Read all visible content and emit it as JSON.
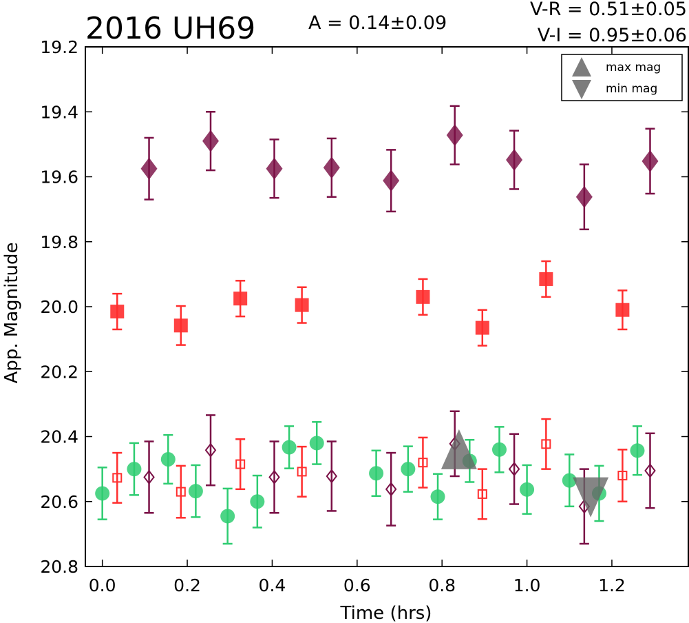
{
  "header": {
    "object_name": "2016 UH69",
    "amplitude": "A  = 0.14±0.09",
    "vr": "V-R = 0.51±0.05",
    "vi": "V-I  = 0.95±0.06"
  },
  "legend": {
    "max_label": "max mag",
    "min_label": "min mag",
    "placement": "top-right"
  },
  "colors": {
    "diamond": "#7a1046",
    "square": "#ff2e2e",
    "circle": "#2ecc71",
    "marker_gray": "#666666"
  },
  "chart_data": {
    "type": "scatter",
    "xlabel": "Time (hrs)",
    "ylabel": "App. Magnitude",
    "xlim": [
      -0.04,
      1.38
    ],
    "ylim": [
      20.8,
      19.2
    ],
    "y_inverted": true,
    "xticks": [
      "0.0",
      "0.2",
      "0.4",
      "0.6",
      "0.8",
      "1.0",
      "1.2"
    ],
    "xtick_values": [
      0.0,
      0.2,
      0.4,
      0.6,
      0.8,
      1.0,
      1.2
    ],
    "yticks": [
      "19.2",
      "19.4",
      "19.6",
      "19.8",
      "20.0",
      "20.2",
      "20.4",
      "20.6",
      "20.8"
    ],
    "ytick_values": [
      19.2,
      19.4,
      19.6,
      19.8,
      20.0,
      20.2,
      20.4,
      20.6,
      20.8
    ],
    "grid": false,
    "series": [
      {
        "marker": "diamond-filled",
        "points": [
          {
            "x": 0.11,
            "y": 19.575,
            "err": 0.095
          },
          {
            "x": 0.255,
            "y": 19.49,
            "err": 0.09
          },
          {
            "x": 0.405,
            "y": 19.575,
            "err": 0.09
          },
          {
            "x": 0.54,
            "y": 19.572,
            "err": 0.09
          },
          {
            "x": 0.68,
            "y": 19.612,
            "err": 0.095
          },
          {
            "x": 0.83,
            "y": 19.472,
            "err": 0.09
          },
          {
            "x": 0.97,
            "y": 19.548,
            "err": 0.09
          },
          {
            "x": 1.135,
            "y": 19.662,
            "err": 0.1
          },
          {
            "x": 1.29,
            "y": 19.552,
            "err": 0.1
          }
        ]
      },
      {
        "marker": "square-filled",
        "points": [
          {
            "x": 0.035,
            "y": 20.015,
            "err": 0.055
          },
          {
            "x": 0.185,
            "y": 20.058,
            "err": 0.06
          },
          {
            "x": 0.325,
            "y": 19.975,
            "err": 0.055
          },
          {
            "x": 0.47,
            "y": 19.995,
            "err": 0.055
          },
          {
            "x": 0.755,
            "y": 19.97,
            "err": 0.055
          },
          {
            "x": 0.895,
            "y": 20.065,
            "err": 0.055
          },
          {
            "x": 1.045,
            "y": 19.915,
            "err": 0.055
          },
          {
            "x": 1.225,
            "y": 20.01,
            "err": 0.06
          }
        ]
      },
      {
        "marker": "circle-filled",
        "points": [
          {
            "x": 0.0,
            "y": 20.575,
            "err": 0.08
          },
          {
            "x": 0.075,
            "y": 20.5,
            "err": 0.08
          },
          {
            "x": 0.155,
            "y": 20.47,
            "err": 0.075
          },
          {
            "x": 0.22,
            "y": 20.568,
            "err": 0.08
          },
          {
            "x": 0.295,
            "y": 20.645,
            "err": 0.085
          },
          {
            "x": 0.365,
            "y": 20.6,
            "err": 0.08
          },
          {
            "x": 0.44,
            "y": 20.433,
            "err": 0.065
          },
          {
            "x": 0.505,
            "y": 20.42,
            "err": 0.065
          },
          {
            "x": 0.645,
            "y": 20.513,
            "err": 0.07
          },
          {
            "x": 0.72,
            "y": 20.5,
            "err": 0.07
          },
          {
            "x": 0.79,
            "y": 20.585,
            "err": 0.07
          },
          {
            "x": 0.865,
            "y": 20.475,
            "err": 0.065
          },
          {
            "x": 0.935,
            "y": 20.44,
            "err": 0.07
          },
          {
            "x": 1.0,
            "y": 20.563,
            "err": 0.075
          },
          {
            "x": 1.1,
            "y": 20.535,
            "err": 0.08
          },
          {
            "x": 1.17,
            "y": 20.575,
            "err": 0.085
          },
          {
            "x": 1.26,
            "y": 20.443,
            "err": 0.075
          }
        ]
      },
      {
        "marker": "square-open",
        "points": [
          {
            "x": 0.035,
            "y": 20.527,
            "err": 0.077
          },
          {
            "x": 0.185,
            "y": 20.57,
            "err": 0.08
          },
          {
            "x": 0.325,
            "y": 20.485,
            "err": 0.077
          },
          {
            "x": 0.47,
            "y": 20.508,
            "err": 0.077
          },
          {
            "x": 0.755,
            "y": 20.48,
            "err": 0.077
          },
          {
            "x": 0.895,
            "y": 20.577,
            "err": 0.077
          },
          {
            "x": 1.045,
            "y": 20.423,
            "err": 0.077
          },
          {
            "x": 1.225,
            "y": 20.52,
            "err": 0.08
          }
        ]
      },
      {
        "marker": "diamond-open",
        "points": [
          {
            "x": 0.11,
            "y": 20.525,
            "err": 0.11
          },
          {
            "x": 0.255,
            "y": 20.442,
            "err": 0.108
          },
          {
            "x": 0.405,
            "y": 20.525,
            "err": 0.11
          },
          {
            "x": 0.54,
            "y": 20.522,
            "err": 0.107
          },
          {
            "x": 0.68,
            "y": 20.562,
            "err": 0.112
          },
          {
            "x": 0.83,
            "y": 20.422,
            "err": 0.1
          },
          {
            "x": 0.97,
            "y": 20.5,
            "err": 0.108
          },
          {
            "x": 1.135,
            "y": 20.615,
            "err": 0.115
          },
          {
            "x": 1.29,
            "y": 20.505,
            "err": 0.115
          }
        ]
      }
    ],
    "extrema": [
      {
        "label": "max mag",
        "marker": "triangle-up",
        "x": 0.84,
        "y": 20.475
      },
      {
        "label": "min mag",
        "marker": "triangle-down",
        "x": 1.15,
        "y": 20.585
      }
    ]
  }
}
